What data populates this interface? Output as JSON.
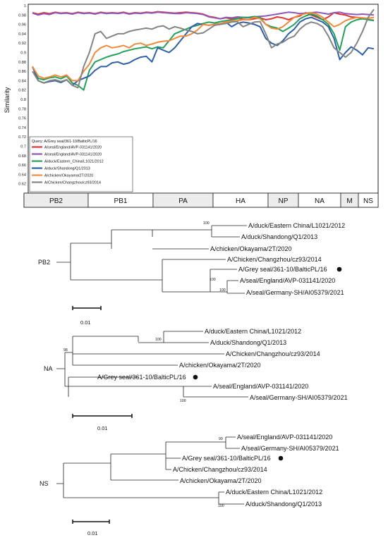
{
  "chart_data": [
    {
      "type": "line",
      "ylabel": "Similarity",
      "ylim": [
        0.6,
        1.0
      ],
      "yticks": [
        "1",
        "0.98",
        "0.96",
        "0.94",
        "0.92",
        "0.9",
        "0.88",
        "0.86",
        "0.84",
        "0.82",
        "0.8",
        "0.78",
        "0.76",
        "0.74",
        "0.72",
        "0.7",
        "0.68",
        "0.66",
        "0.64",
        "0.62"
      ],
      "legend_title": "Query: A/Grey seal/361-10/BalticPL/16",
      "legend_position": "bottom-left",
      "segments": [
        "PB2",
        "PB1",
        "PA",
        "HA",
        "NP",
        "NA",
        "M",
        "NS"
      ],
      "series": [
        {
          "name": "A/seal/England/AVP-031141/2020",
          "color": "#d93535",
          "values": [
            0.985,
            0.982,
            0.985,
            0.983,
            0.986,
            0.984,
            0.985,
            0.983,
            0.986,
            0.984,
            0.985,
            0.983,
            0.986,
            0.984,
            0.985,
            0.984,
            0.986,
            0.983,
            0.985,
            0.984,
            0.986,
            0.985,
            0.987,
            0.986,
            0.985,
            0.984,
            0.985,
            0.986,
            0.985,
            0.984,
            0.982,
            0.977,
            0.975,
            0.972,
            0.974,
            0.972,
            0.973,
            0.971,
            0.97,
            0.972,
            0.974,
            0.97,
            0.972,
            0.976,
            0.974,
            0.97,
            0.975,
            0.978,
            0.985,
            0.98,
            0.975,
            0.97,
            0.976,
            0.985,
            0.982,
            0.98,
            0.976,
            0.975,
            0.973,
            0.97,
            0.969
          ]
        },
        {
          "name": "A/seal/England/AVP-031141/2020",
          "color": "#8e57b8",
          "values": [
            0.984,
            0.98,
            0.983,
            0.981,
            0.985,
            0.983,
            0.984,
            0.982,
            0.985,
            0.983,
            0.984,
            0.982,
            0.985,
            0.983,
            0.984,
            0.983,
            0.985,
            0.982,
            0.984,
            0.983,
            0.985,
            0.984,
            0.986,
            0.985,
            0.984,
            0.983,
            0.983,
            0.985,
            0.984,
            0.983,
            0.981,
            0.976,
            0.974,
            0.972,
            0.975,
            0.974,
            0.976,
            0.975,
            0.974,
            0.976,
            0.977,
            0.978,
            0.98,
            0.982,
            0.984,
            0.986,
            0.985,
            0.983,
            0.984,
            0.985,
            0.986,
            0.984,
            0.982,
            0.985,
            0.986,
            0.983,
            0.982,
            0.981,
            0.982,
            0.981,
            0.98
          ]
        },
        {
          "name": "A/duck/Eastern_China/L1021/2012",
          "color": "#23a05a",
          "values": [
            0.87,
            0.845,
            0.842,
            0.846,
            0.848,
            0.844,
            0.85,
            0.835,
            0.83,
            0.82,
            0.862,
            0.88,
            0.885,
            0.89,
            0.894,
            0.897,
            0.902,
            0.905,
            0.908,
            0.91,
            0.912,
            0.908,
            0.912,
            0.91,
            0.925,
            0.94,
            0.945,
            0.95,
            0.955,
            0.958,
            0.962,
            0.965,
            0.963,
            0.966,
            0.968,
            0.97,
            0.972,
            0.975,
            0.975,
            0.977,
            0.975,
            0.96,
            0.955,
            0.952,
            0.945,
            0.952,
            0.96,
            0.972,
            0.978,
            0.982,
            0.978,
            0.97,
            0.96,
            0.94,
            0.905,
            0.955,
            0.965,
            0.97,
            0.972,
            0.97,
            0.968
          ]
        },
        {
          "name": "A/duck/Shandong/Q1/2013",
          "color": "#2f5fa8",
          "values": [
            0.87,
            0.84,
            0.835,
            0.838,
            0.84,
            0.836,
            0.842,
            0.83,
            0.84,
            0.845,
            0.85,
            0.862,
            0.87,
            0.87,
            0.878,
            0.88,
            0.875,
            0.878,
            0.885,
            0.89,
            0.892,
            0.88,
            0.91,
            0.905,
            0.9,
            0.91,
            0.925,
            0.94,
            0.955,
            0.962,
            0.96,
            0.958,
            0.96,
            0.962,
            0.965,
            0.955,
            0.962,
            0.965,
            0.963,
            0.96,
            0.955,
            0.93,
            0.92,
            0.915,
            0.925,
            0.94,
            0.95,
            0.965,
            0.972,
            0.975,
            0.97,
            0.965,
            0.955,
            0.93,
            0.885,
            0.9,
            0.912,
            0.905,
            0.895,
            0.91,
            0.908
          ]
        },
        {
          "name": "A/chicken/Okayama/2T/2020",
          "color": "#f08a3c",
          "values": [
            0.87,
            0.85,
            0.845,
            0.848,
            0.852,
            0.848,
            0.852,
            0.84,
            0.84,
            0.86,
            0.875,
            0.9,
            0.91,
            0.915,
            0.91,
            0.912,
            0.915,
            0.91,
            0.918,
            0.92,
            0.915,
            0.918,
            0.922,
            0.924,
            0.925,
            0.93,
            0.935,
            0.935,
            0.94,
            0.948,
            0.96,
            0.958,
            0.96,
            0.962,
            0.965,
            0.967,
            0.968,
            0.97,
            0.97,
            0.975,
            0.972,
            0.96,
            0.952,
            0.95,
            0.955,
            0.965,
            0.975,
            0.98,
            0.983,
            0.985,
            0.982,
            0.975,
            0.965,
            0.955,
            0.96,
            0.968,
            0.972,
            0.975,
            0.974,
            0.973,
            0.975
          ]
        },
        {
          "name": "A/Chicken/Changzhou/cz93/2014",
          "color": "#848484",
          "values": [
            0.86,
            0.84,
            0.835,
            0.84,
            0.842,
            0.838,
            0.842,
            0.83,
            0.825,
            0.87,
            0.9,
            0.94,
            0.945,
            0.93,
            0.935,
            0.94,
            0.94,
            0.945,
            0.948,
            0.95,
            0.952,
            0.95,
            0.955,
            0.957,
            0.95,
            0.955,
            0.952,
            0.948,
            0.945,
            0.94,
            0.942,
            0.95,
            0.958,
            0.96,
            0.962,
            0.965,
            0.966,
            0.955,
            0.96,
            0.965,
            0.966,
            0.94,
            0.91,
            0.918,
            0.922,
            0.93,
            0.935,
            0.95,
            0.96,
            0.965,
            0.962,
            0.955,
            0.935,
            0.91,
            0.9,
            0.89,
            0.9,
            0.92,
            0.945,
            0.975,
            0.992
          ]
        }
      ]
    }
  ],
  "trees": [
    {
      "label": "PB2",
      "scale": "0.01",
      "nodes": [
        {
          "id": "a",
          "label": "A/duck/Eastern China/L1021/2012"
        },
        {
          "id": "b",
          "label": "A/duck/Shandong/Q1/2013"
        },
        {
          "id": "c",
          "label": "A/chicken/Okayama/2T/2020"
        },
        {
          "id": "d",
          "label": "A/Chicken/Changzhou/cz93/2014"
        },
        {
          "id": "e",
          "label": "A/Grey seal/361-10/BalticPL/16"
        },
        {
          "id": "f",
          "label": "A/seal/England/AVP-031141/2020"
        },
        {
          "id": "g",
          "label": "A/seal/Germany-SH/AI05379/2021"
        }
      ],
      "bootstrap": [
        "100",
        "100",
        "100"
      ]
    },
    {
      "label": "NA",
      "scale": "0.01",
      "nodes": [
        {
          "id": "a",
          "label": "A/duck/Eastern China/L1021/2012"
        },
        {
          "id": "b",
          "label": "A/duck/Shandong/Q1/2013"
        },
        {
          "id": "c",
          "label": "A/Chicken/Changzhou/cz93/2014"
        },
        {
          "id": "d",
          "label": "A/chicken/Okayama/2T/2020"
        },
        {
          "id": "e",
          "label": "A/Grey seal/361-10/BalticPL/16"
        },
        {
          "id": "f",
          "label": "A/seal/England/AVP-031141/2020"
        },
        {
          "id": "g",
          "label": "A/seal/Germany-SH/AI05379/2021"
        }
      ],
      "bootstrap": [
        "100",
        "98",
        "100"
      ]
    },
    {
      "label": "NS",
      "scale": "0.01",
      "nodes": [
        {
          "id": "a",
          "label": "A/seal/England/AVP-031141/2020"
        },
        {
          "id": "b",
          "label": "A/seal/Germany-SH/AI05379/2021"
        },
        {
          "id": "c",
          "label": "A/Grey seal/361-10/BalticPL/16"
        },
        {
          "id": "d",
          "label": "A/Chicken/Changzhou/cz93/2014"
        },
        {
          "id": "e",
          "label": "A/chicken/Okayama/2T/2020"
        },
        {
          "id": "f",
          "label": "A/duck/Eastern China/L1021/2012"
        },
        {
          "id": "g",
          "label": "A/duck/Shandong/Q1/2013"
        }
      ],
      "bootstrap": [
        "99",
        "100"
      ]
    }
  ]
}
